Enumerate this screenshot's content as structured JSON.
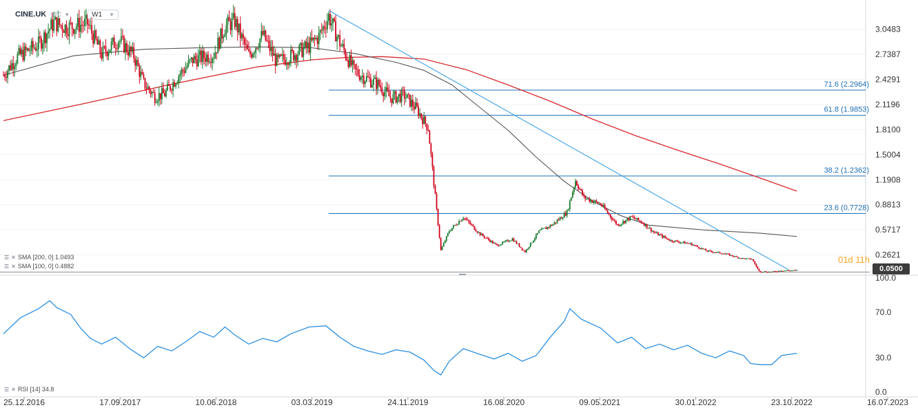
{
  "toolbar": {
    "symbol": "CINE.UK",
    "type_label": "STC",
    "timeframe": "W1"
  },
  "indicators": {
    "sma200_label": "SMA [200, 0] 1.0493",
    "sma100_label": "SMA [100, 0] 0.4882",
    "rsi_label": "RSI [14] 34.8"
  },
  "countdown": "01d 11h",
  "current_price": "0.0500",
  "colors": {
    "up": "#1a7a2e",
    "down": "#d0021b",
    "sma200": "#d8262b",
    "sma100": "#555555",
    "fib": "#1f6fb5",
    "trendline": "#4aa8e8",
    "rsi": "#2b8fe0"
  },
  "chart_data": [
    {
      "type": "candlestick",
      "title": "",
      "x_ticks": [
        "25.12.2016",
        "17.09.2017",
        "10.06.2018",
        "03.03.2019",
        "24.11.2019",
        "16.08.2020",
        "09.05.2021",
        "30.01.2022",
        "23.10.2022",
        "16.07.2023"
      ],
      "y_ticks": [
        "3.0483",
        "2.7387",
        "2.4291",
        "2.1196",
        "1.8100",
        "1.5004",
        "1.1908",
        "0.8813",
        "0.5717",
        "0.2621"
      ],
      "y_range": [
        0.03,
        3.29
      ],
      "fib_levels": [
        {
          "label": "71.6 (2.2964)",
          "value": 2.2964
        },
        {
          "label": "61.8 (1.9853)",
          "value": 1.9853
        },
        {
          "label": "38.2 (1.2362)",
          "value": 1.2362
        },
        {
          "label": "23.6 (0.7728)",
          "value": 0.7728
        }
      ],
      "trendline": {
        "from": {
          "week": 232,
          "value": 3.28
        },
        "to": {
          "week": 560,
          "value": 0.08
        }
      },
      "sma200": [
        [
          0,
          1.92
        ],
        [
          60,
          2.14
        ],
        [
          120,
          2.37
        ],
        [
          180,
          2.58
        ],
        [
          220,
          2.67
        ],
        [
          245,
          2.7
        ],
        [
          270,
          2.71
        ],
        [
          300,
          2.68
        ],
        [
          330,
          2.55
        ],
        [
          360,
          2.36
        ],
        [
          390,
          2.16
        ],
        [
          420,
          1.94
        ],
        [
          450,
          1.74
        ],
        [
          480,
          1.56
        ],
        [
          510,
          1.39
        ],
        [
          540,
          1.21
        ],
        [
          566,
          1.05
        ]
      ],
      "sma100": [
        [
          0,
          2.48
        ],
        [
          50,
          2.72
        ],
        [
          100,
          2.8
        ],
        [
          140,
          2.82
        ],
        [
          180,
          2.83
        ],
        [
          220,
          2.82
        ],
        [
          250,
          2.75
        ],
        [
          280,
          2.64
        ],
        [
          300,
          2.54
        ],
        [
          320,
          2.36
        ],
        [
          340,
          2.08
        ],
        [
          360,
          1.8
        ],
        [
          380,
          1.47
        ],
        [
          400,
          1.17
        ],
        [
          420,
          0.93
        ],
        [
          440,
          0.75
        ],
        [
          460,
          0.63
        ],
        [
          480,
          0.6
        ],
        [
          500,
          0.57
        ],
        [
          520,
          0.55
        ],
        [
          540,
          0.53
        ],
        [
          566,
          0.49
        ]
      ],
      "price_path": [
        [
          0,
          2.48
        ],
        [
          10,
          2.71
        ],
        [
          25,
          2.86
        ],
        [
          36,
          3.13
        ],
        [
          45,
          3.07
        ],
        [
          60,
          3.12
        ],
        [
          70,
          2.74
        ],
        [
          82,
          2.92
        ],
        [
          93,
          2.72
        ],
        [
          100,
          2.38
        ],
        [
          108,
          2.22
        ],
        [
          115,
          2.25
        ],
        [
          125,
          2.48
        ],
        [
          135,
          2.67
        ],
        [
          150,
          2.74
        ],
        [
          158,
          3.08
        ],
        [
          165,
          3.15
        ],
        [
          175,
          2.72
        ],
        [
          185,
          2.98
        ],
        [
          195,
          2.64
        ],
        [
          205,
          2.72
        ],
        [
          218,
          2.84
        ],
        [
          225,
          2.96
        ],
        [
          232,
          3.21
        ],
        [
          240,
          2.88
        ],
        [
          250,
          2.54
        ],
        [
          258,
          2.45
        ],
        [
          268,
          2.36
        ],
        [
          276,
          2.2
        ],
        [
          286,
          2.23
        ],
        [
          295,
          2.06
        ],
        [
          303,
          1.83
        ],
        [
          309,
          0.81
        ],
        [
          312,
          0.32
        ],
        [
          318,
          0.56
        ],
        [
          328,
          0.73
        ],
        [
          340,
          0.52
        ],
        [
          352,
          0.38
        ],
        [
          363,
          0.46
        ],
        [
          372,
          0.3
        ],
        [
          382,
          0.55
        ],
        [
          392,
          0.64
        ],
        [
          402,
          0.79
        ],
        [
          408,
          1.18
        ],
        [
          414,
          0.97
        ],
        [
          426,
          0.89
        ],
        [
          438,
          0.63
        ],
        [
          448,
          0.73
        ],
        [
          456,
          0.66
        ],
        [
          464,
          0.54
        ],
        [
          476,
          0.44
        ],
        [
          490,
          0.4
        ],
        [
          502,
          0.31
        ],
        [
          514,
          0.28
        ],
        [
          526,
          0.22
        ],
        [
          534,
          0.21
        ],
        [
          539,
          0.06
        ],
        [
          548,
          0.05
        ],
        [
          555,
          0.07
        ],
        [
          566,
          0.07
        ]
      ],
      "last_price": 0.05
    },
    {
      "type": "line",
      "title": "",
      "y_ticks": [
        "100.0",
        "70.0",
        "30.0",
        "0.0"
      ],
      "y_range": [
        0,
        100
      ],
      "rsi_path": [
        [
          0,
          51
        ],
        [
          12,
          65
        ],
        [
          25,
          73
        ],
        [
          33,
          80
        ],
        [
          38,
          74
        ],
        [
          48,
          68
        ],
        [
          55,
          56
        ],
        [
          62,
          47
        ],
        [
          70,
          42
        ],
        [
          80,
          48
        ],
        [
          90,
          38
        ],
        [
          100,
          30
        ],
        [
          110,
          40
        ],
        [
          120,
          36
        ],
        [
          130,
          44
        ],
        [
          140,
          53
        ],
        [
          150,
          48
        ],
        [
          158,
          57
        ],
        [
          165,
          50
        ],
        [
          175,
          42
        ],
        [
          185,
          47
        ],
        [
          195,
          44
        ],
        [
          205,
          51
        ],
        [
          218,
          57
        ],
        [
          230,
          58
        ],
        [
          240,
          48
        ],
        [
          250,
          40
        ],
        [
          260,
          36
        ],
        [
          270,
          33
        ],
        [
          280,
          37
        ],
        [
          290,
          35
        ],
        [
          300,
          28
        ],
        [
          307,
          19
        ],
        [
          312,
          15
        ],
        [
          318,
          27
        ],
        [
          328,
          38
        ],
        [
          340,
          33
        ],
        [
          350,
          29
        ],
        [
          360,
          34
        ],
        [
          370,
          27
        ],
        [
          380,
          32
        ],
        [
          390,
          48
        ],
        [
          400,
          62
        ],
        [
          404,
          73
        ],
        [
          412,
          64
        ],
        [
          426,
          56
        ],
        [
          438,
          43
        ],
        [
          448,
          48
        ],
        [
          458,
          38
        ],
        [
          468,
          42
        ],
        [
          478,
          37
        ],
        [
          488,
          41
        ],
        [
          498,
          34
        ],
        [
          508,
          30
        ],
        [
          518,
          36
        ],
        [
          528,
          32
        ],
        [
          533,
          25
        ],
        [
          540,
          24
        ],
        [
          548,
          24
        ],
        [
          555,
          32
        ],
        [
          566,
          34
        ]
      ],
      "last_value": 34.8
    }
  ]
}
